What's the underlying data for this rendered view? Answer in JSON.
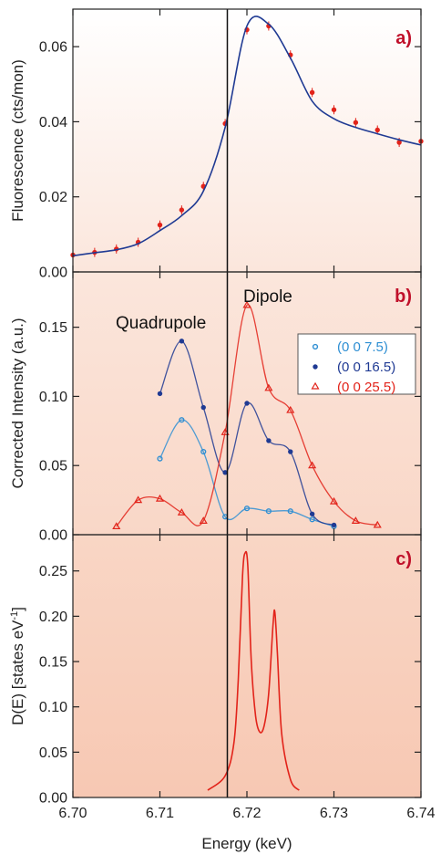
{
  "chart_data": [
    {
      "type": "scatter",
      "panel_tag": "a)",
      "ylabel": "Fluorescence (cts/mon)",
      "xlim": [
        6.7,
        6.74
      ],
      "ylim": [
        0.0,
        0.07
      ],
      "yticks": [
        "0.00",
        "0.02",
        "0.04",
        "0.06"
      ],
      "series": [
        {
          "color": "#e2231a",
          "marker": "filled-circle",
          "errorbars": true,
          "x": [
            6.7,
            6.7025,
            6.705,
            6.7075,
            6.71,
            6.7125,
            6.715,
            6.7175,
            6.72,
            6.7225,
            6.725,
            6.7275,
            6.73,
            6.7325,
            6.735,
            6.7375,
            6.74
          ],
          "y": [
            0.0045,
            0.0052,
            0.0061,
            0.0079,
            0.0125,
            0.0165,
            0.0228,
            0.0395,
            0.0645,
            0.0655,
            0.0578,
            0.0478,
            0.0432,
            0.0398,
            0.0378,
            0.0345,
            0.0348
          ]
        },
        {
          "color": "#1f3a93",
          "marker": "line",
          "x": [
            6.7,
            6.7025,
            6.705,
            6.7075,
            6.71,
            6.7125,
            6.715,
            6.7175,
            6.72,
            6.7225,
            6.725,
            6.7275,
            6.73,
            6.7325,
            6.735,
            6.7375,
            6.74
          ],
          "y": [
            0.0043,
            0.0051,
            0.0059,
            0.0075,
            0.011,
            0.015,
            0.0215,
            0.0385,
            0.0655,
            0.066,
            0.057,
            0.0455,
            0.0408,
            0.0385,
            0.0368,
            0.0352,
            0.0338
          ]
        }
      ]
    },
    {
      "type": "scatter",
      "panel_tag": "b)",
      "ylabel": "Corrected Intensity (a.u.)",
      "xlim": [
        6.7,
        6.74
      ],
      "ylim": [
        0.0,
        0.19
      ],
      "yticks": [
        "0.00",
        "0.05",
        "0.10",
        "0.15"
      ],
      "annotations": [
        {
          "text": "Quadrupole",
          "x": 6.7075,
          "y": 0.155
        },
        {
          "text": "Dipole",
          "x": 6.7225,
          "y": 0.175
        }
      ],
      "legend_position": "upper-right",
      "series": [
        {
          "name": "(0 0 7.5)",
          "color": "#2f8fd3",
          "marker": "open-circle",
          "x": [
            6.71,
            6.7125,
            6.715,
            6.7175,
            6.72,
            6.7225,
            6.725,
            6.7275,
            6.73
          ],
          "y": [
            0.055,
            0.083,
            0.06,
            0.013,
            0.019,
            0.017,
            0.017,
            0.011,
            0.006
          ]
        },
        {
          "name": "(0 0 16.5)",
          "color": "#1f3a93",
          "marker": "filled-circle",
          "x": [
            6.71,
            6.7125,
            6.715,
            6.7175,
            6.72,
            6.7225,
            6.725,
            6.7275,
            6.73
          ],
          "y": [
            0.102,
            0.14,
            0.092,
            0.045,
            0.095,
            0.068,
            0.06,
            0.015,
            0.007
          ]
        },
        {
          "name": "(0 0 25.5)",
          "color": "#e2231a",
          "marker": "open-triangle",
          "x": [
            6.705,
            6.7075,
            6.71,
            6.7125,
            6.715,
            6.7175,
            6.72,
            6.7225,
            6.725,
            6.7275,
            6.73,
            6.7325,
            6.735
          ],
          "y": [
            0.006,
            0.025,
            0.026,
            0.016,
            0.01,
            0.074,
            0.166,
            0.106,
            0.09,
            0.05,
            0.024,
            0.01,
            0.007
          ]
        }
      ]
    },
    {
      "type": "line",
      "panel_tag": "c)",
      "ylabel": "D(E) [states eV",
      "ylabel_superscript": "-1",
      "ylabel_suffix": "]",
      "xlabel": "Energy (keV)",
      "xlim": [
        6.7,
        6.74
      ],
      "ylim": [
        0.0,
        0.29
      ],
      "yticks": [
        "0.00",
        "0.05",
        "0.10",
        "0.15",
        "0.20",
        "0.25"
      ],
      "xticks": [
        "6.70",
        "6.71",
        "6.72",
        "6.73",
        "6.74"
      ],
      "series": [
        {
          "color": "#e2231a",
          "x": [
            6.7155,
            6.7175,
            6.7185,
            6.719,
            6.7195,
            6.7198,
            6.7201,
            6.7205,
            6.721,
            6.7215,
            6.722,
            6.7225,
            6.723,
            6.7232,
            6.7235,
            6.724,
            6.725,
            6.726
          ],
          "y": [
            0.008,
            0.024,
            0.06,
            0.13,
            0.245,
            0.27,
            0.255,
            0.15,
            0.09,
            0.072,
            0.08,
            0.115,
            0.19,
            0.205,
            0.16,
            0.07,
            0.02,
            0.008
          ]
        }
      ]
    }
  ]
}
